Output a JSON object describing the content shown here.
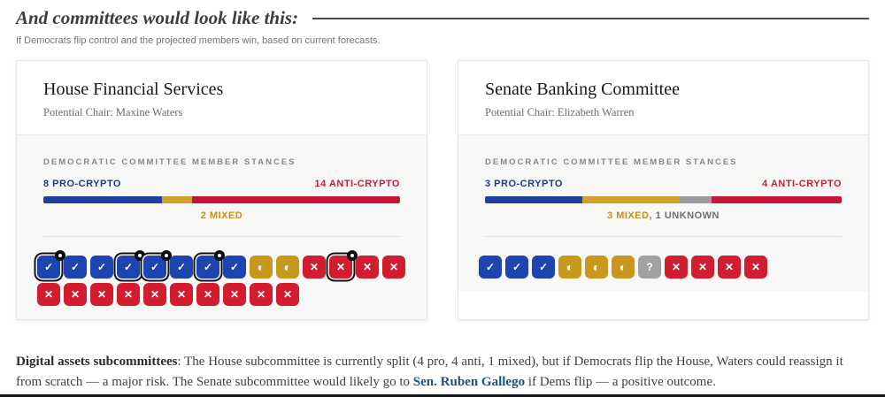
{
  "header": {
    "title": "And committees would look like this:",
    "subtitle": "If Democrats flip control and the projected members win, based on current forecasts."
  },
  "colors": {
    "label_pro": "#1e3a8c",
    "label_anti": "#c11f3e",
    "label_mixed": "#c2901c",
    "label_unknown": "#6e6e76",
    "bar_pro": "#1e409e",
    "bar_mixed": "#d0a02b",
    "bar_unknown": "#9b9b9b",
    "bar_anti": "#c5173a",
    "tile_pro": "#1d44b0",
    "tile_mixed": "#c8981c",
    "tile_unknown": "#a1a1a1",
    "tile_anti": "#d21c30",
    "link": "#20527f"
  },
  "glyphs": {
    "pro": "✓",
    "mixed": "◐",
    "unknown": "?",
    "anti": "✕"
  },
  "committees": [
    {
      "title": "House Financial Services",
      "chair": "Potential Chair: Maxine Waters",
      "stances_label": "DEMOCRATIC COMMITTEE MEMBER STANCES",
      "pro_label": "8 PRO-CRYPTO",
      "anti_label": "14 ANTI-CRYPTO",
      "caption_parts": [
        {
          "text": "2 MIXED",
          "type": "mixed"
        }
      ],
      "bar_segments": [
        {
          "type": "pro",
          "fraction": 0.3333
        },
        {
          "type": "mixed",
          "fraction": 0.0833
        },
        {
          "type": "anti",
          "fraction": 0.5834
        }
      ],
      "tile_rows": [
        [
          {
            "type": "pro",
            "badge": true
          },
          {
            "type": "pro",
            "badge": false
          },
          {
            "type": "pro",
            "badge": false
          },
          {
            "type": "pro",
            "badge": true
          },
          {
            "type": "pro",
            "badge": true
          },
          {
            "type": "pro",
            "badge": false
          },
          {
            "type": "pro",
            "badge": true
          },
          {
            "type": "pro",
            "badge": false
          },
          {
            "type": "mixed",
            "badge": false
          },
          {
            "type": "mixed",
            "badge": false
          },
          {
            "type": "anti",
            "badge": false
          },
          {
            "type": "anti",
            "badge": true
          },
          {
            "type": "anti",
            "badge": false
          },
          {
            "type": "anti",
            "badge": false
          }
        ],
        [
          {
            "type": "anti",
            "badge": false
          },
          {
            "type": "anti",
            "badge": false
          },
          {
            "type": "anti",
            "badge": false
          },
          {
            "type": "anti",
            "badge": false
          },
          {
            "type": "anti",
            "badge": false
          },
          {
            "type": "anti",
            "badge": false
          },
          {
            "type": "anti",
            "badge": false
          },
          {
            "type": "anti",
            "badge": false
          },
          {
            "type": "anti",
            "badge": false
          },
          {
            "type": "anti",
            "badge": false
          }
        ]
      ]
    },
    {
      "title": "Senate Banking Committee",
      "chair": "Potential Chair: Elizabeth Warren",
      "stances_label": "DEMOCRATIC COMMITTEE MEMBER STANCES",
      "pro_label": "3 PRO-CRYPTO",
      "anti_label": "4 ANTI-CRYPTO",
      "caption_parts": [
        {
          "text": "3 MIXED",
          "type": "mixed"
        },
        {
          "text": ", 1 UNKNOWN",
          "type": "unknown"
        }
      ],
      "bar_segments": [
        {
          "type": "pro",
          "fraction": 0.2727
        },
        {
          "type": "mixed",
          "fraction": 0.2727
        },
        {
          "type": "unknown",
          "fraction": 0.0909
        },
        {
          "type": "anti",
          "fraction": 0.3637
        }
      ],
      "tile_rows": [
        [
          {
            "type": "pro",
            "badge": false
          },
          {
            "type": "pro",
            "badge": false
          },
          {
            "type": "pro",
            "badge": false
          },
          {
            "type": "mixed",
            "badge": false
          },
          {
            "type": "mixed",
            "badge": false
          },
          {
            "type": "mixed",
            "badge": false
          },
          {
            "type": "unknown",
            "badge": false
          },
          {
            "type": "anti",
            "badge": false
          },
          {
            "type": "anti",
            "badge": false
          },
          {
            "type": "anti",
            "badge": false
          },
          {
            "type": "anti",
            "badge": false
          }
        ]
      ]
    }
  ],
  "footer": {
    "bold": "Digital assets subcommittees",
    "text1": ": The House subcommittee is currently split (4 pro, 4 anti, 1 mixed), but if Democrats flip the House, Waters could reassign it from scratch — a major risk. The Senate subcommittee would likely go to ",
    "link": "Sen. Ruben Gallego",
    "text2": " if Dems flip — a positive outcome."
  }
}
